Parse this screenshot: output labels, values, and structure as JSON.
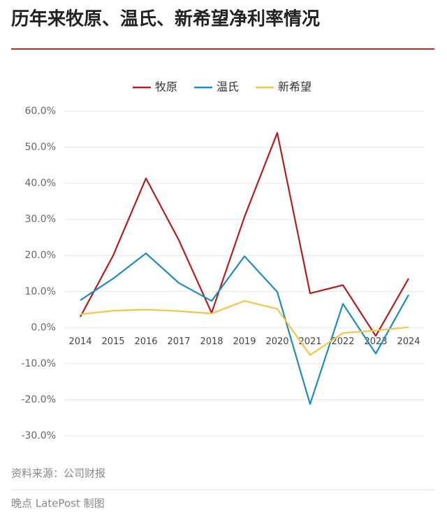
{
  "chart_data": {
    "type": "line",
    "title": "历年来牧原、温氏、新希望净利率情况",
    "categories": [
      "2014",
      "2015",
      "2016",
      "2017",
      "2018",
      "2019",
      "2020",
      "2021",
      "2022",
      "2023",
      "2024"
    ],
    "series": [
      {
        "name": "牧原",
        "color": "#b71c1c",
        "values": [
          3.0,
          20.0,
          41.4,
          24.3,
          4.1,
          30.7,
          54.0,
          9.5,
          11.8,
          -2.3,
          13.6
        ]
      },
      {
        "name": "温氏",
        "color": "#1e8ac4",
        "values": [
          7.6,
          13.6,
          20.6,
          12.4,
          7.4,
          19.8,
          9.9,
          -21.2,
          6.6,
          -7.2,
          9.1
        ]
      },
      {
        "name": "新希望",
        "color": "#f5c542",
        "values": [
          3.7,
          4.7,
          5.0,
          4.6,
          3.9,
          7.4,
          5.2,
          -7.6,
          -1.5,
          -0.8,
          0.1
        ]
      }
    ],
    "ylim": [
      -30,
      60
    ],
    "yticks": [
      {
        "value": -30,
        "label": "-30.0%"
      },
      {
        "value": -20,
        "label": "-20.0%"
      },
      {
        "value": -10,
        "label": "-10.0%"
      },
      {
        "value": 0,
        "label": "0.0%"
      },
      {
        "value": 10,
        "label": "10.0%"
      },
      {
        "value": 20,
        "label": "20.0%"
      },
      {
        "value": 30,
        "label": "30.0%"
      },
      {
        "value": 40,
        "label": "40.0%"
      },
      {
        "value": 50,
        "label": "50.0%"
      },
      {
        "value": 60,
        "label": "60.0%"
      }
    ],
    "grid": true,
    "legend": "top"
  },
  "source": "资料来源：公司财报",
  "credit": "晚点 LatePost 制图"
}
